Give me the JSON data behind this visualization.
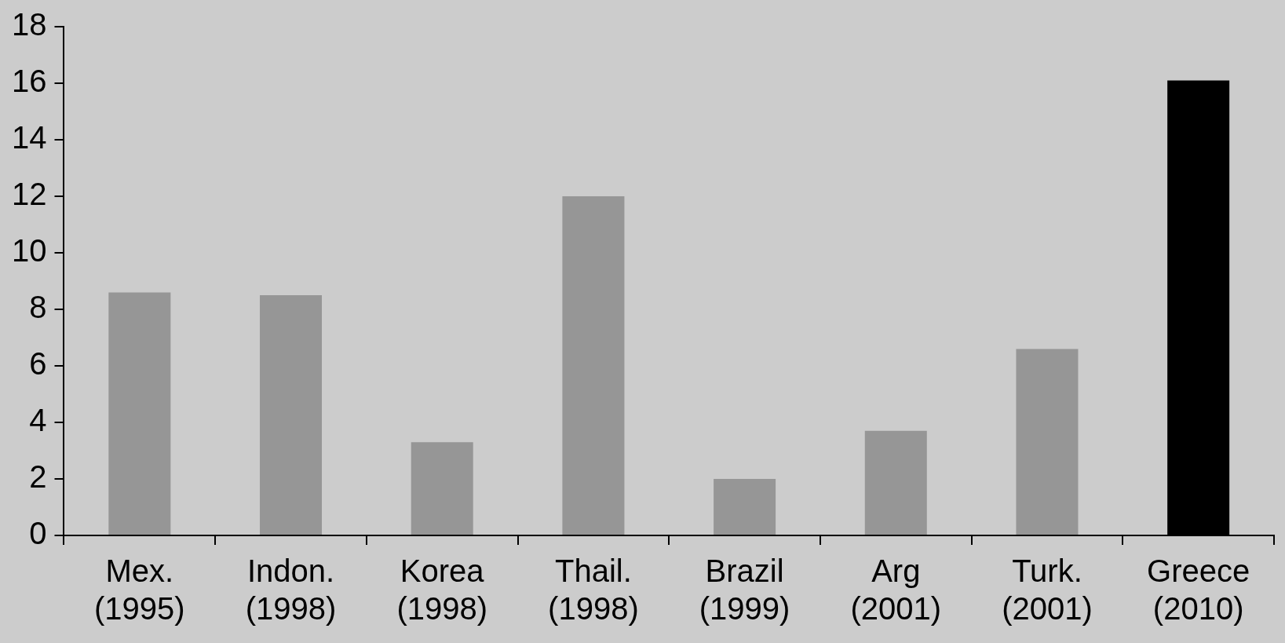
{
  "chart_data": {
    "type": "bar",
    "categories": [
      "Mex.\n(1995)",
      "Indon.\n(1998)",
      "Korea\n(1998)",
      "Thail.\n(1998)",
      "Brazil\n(1999)",
      "Arg\n(2001)",
      "Turk.\n(2001)",
      "Greece\n(2010)"
    ],
    "values": [
      8.6,
      8.5,
      3.3,
      12,
      2,
      3.7,
      6.6,
      16.1
    ],
    "colors": [
      "#969696",
      "#969696",
      "#969696",
      "#969696",
      "#969696",
      "#969696",
      "#969696",
      "#000000"
    ],
    "ylim": [
      0,
      18
    ],
    "yticks": [
      0,
      2,
      4,
      6,
      8,
      10,
      12,
      14,
      16,
      18
    ],
    "grid": false
  }
}
